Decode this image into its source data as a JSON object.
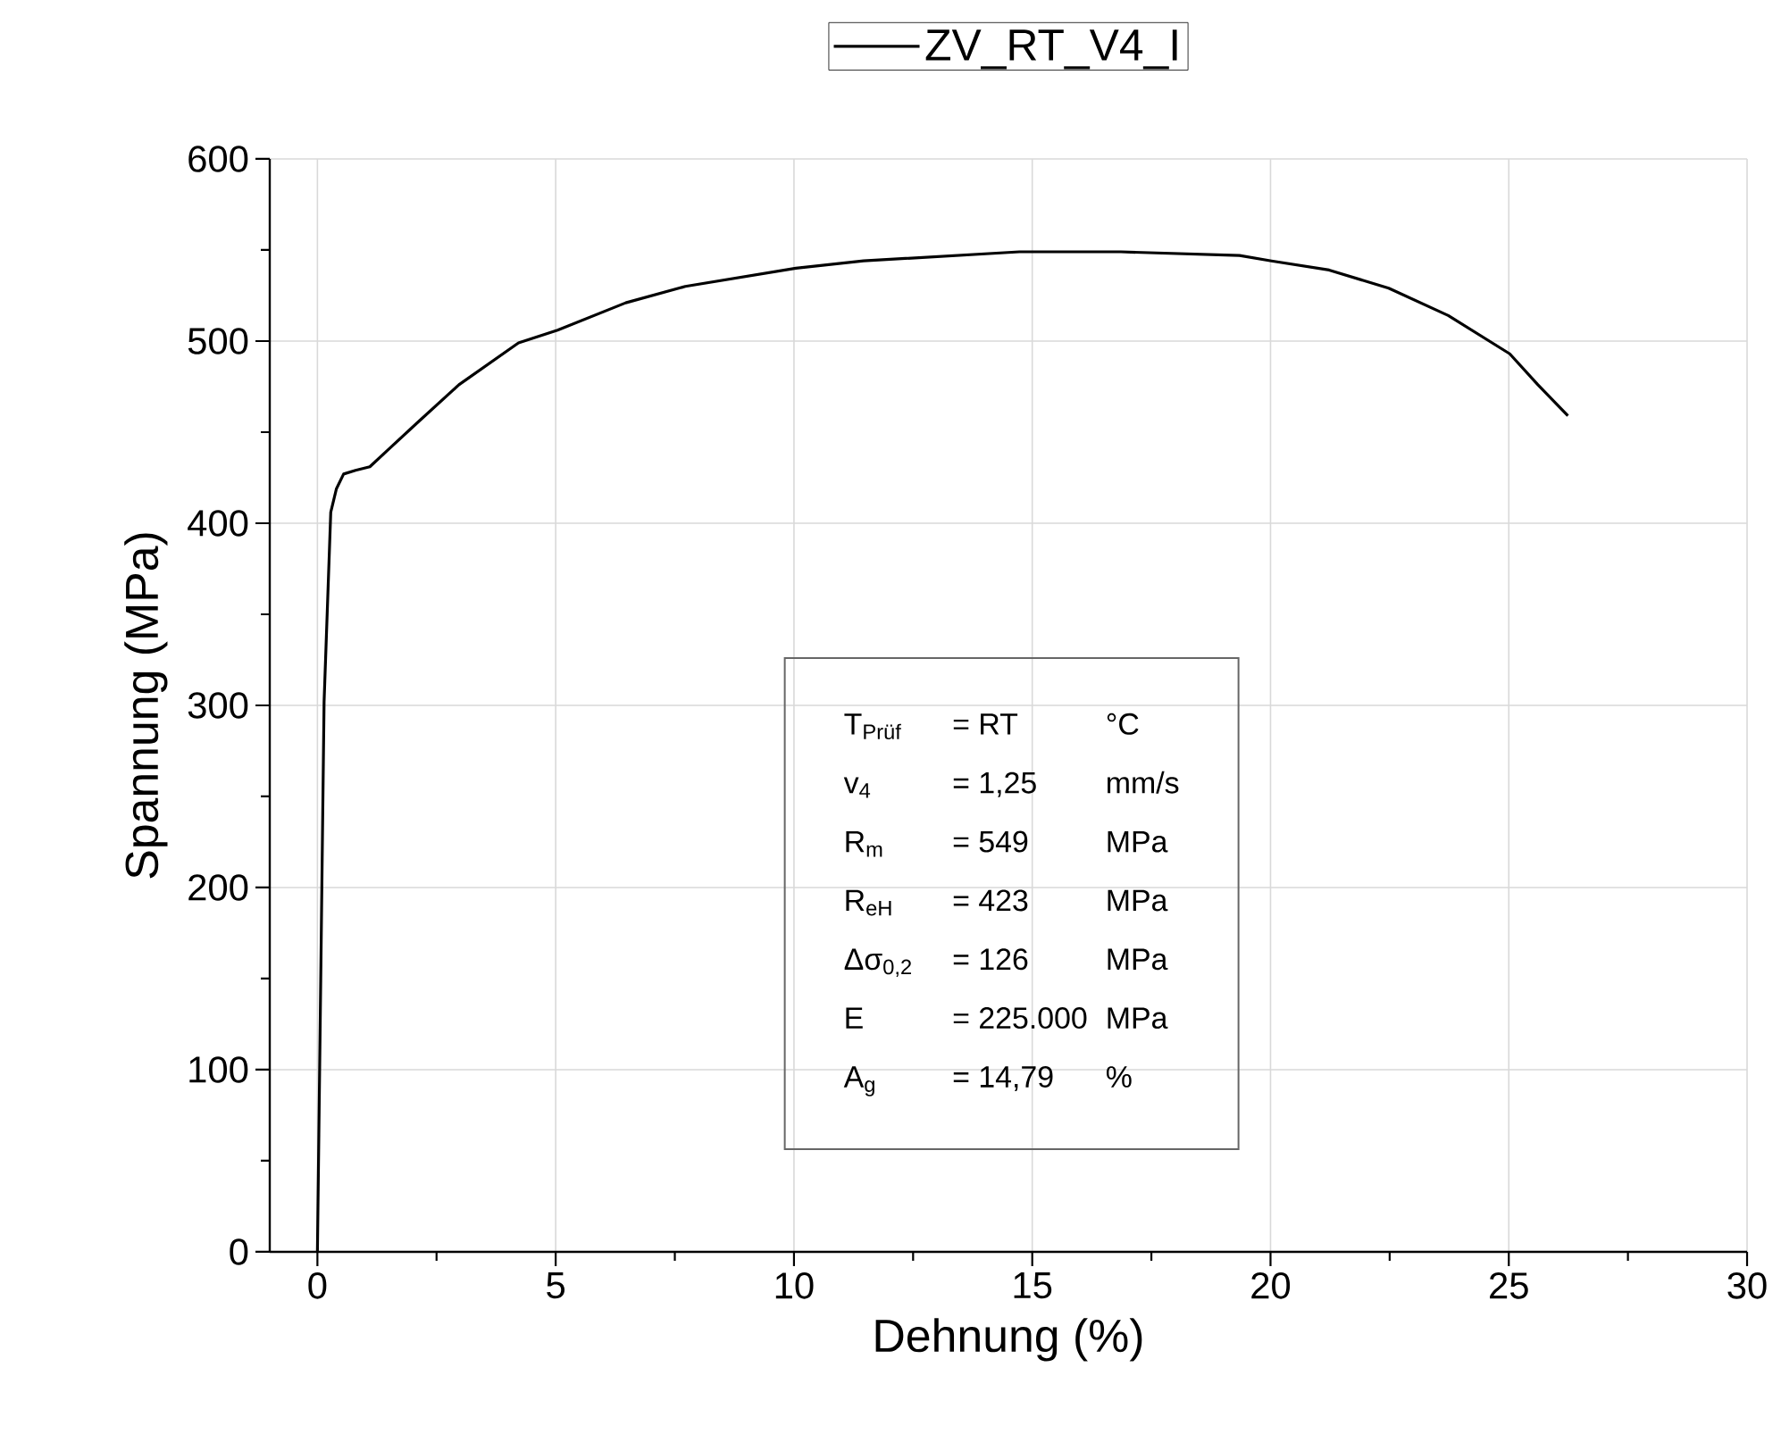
{
  "chart_data": {
    "type": "line",
    "xlabel": "Dehnung (%)",
    "ylabel": "Spannung (MPa)",
    "xlim": [
      -1,
      30
    ],
    "ylim": [
      0,
      600
    ],
    "xticks": [
      0,
      5,
      10,
      15,
      20,
      25,
      30
    ],
    "yticks": [
      0,
      100,
      200,
      300,
      400,
      500,
      600
    ],
    "grid": true,
    "legend": "top",
    "series": [
      {
        "name": "ZV_RT_V4_I",
        "color": "#000000",
        "x": [
          0,
          0.07,
          0.14,
          0.28,
          0.4,
          0.55,
          0.8,
          1.1,
          1.47,
          2.09,
          2.97,
          4.22,
          5.04,
          6.47,
          7.72,
          10.04,
          11.46,
          14.73,
          16.86,
          19.35,
          20.02,
          21.23,
          22.48,
          23.73,
          25.02,
          25.61,
          26.24
        ],
        "values": [
          0,
          150,
          302,
          406,
          419,
          427,
          429,
          431,
          440,
          455,
          476,
          499,
          506,
          521,
          530,
          540,
          544,
          549,
          549,
          547,
          544,
          539,
          529,
          514,
          493,
          476,
          459
        ]
      }
    ],
    "annotations": [
      "T$_{Prüf}$",
      "= RT",
      "°C",
      "v$_{4}$",
      "= 1,25",
      "mm/s",
      "R$_{m}$",
      "= 549",
      "MPa",
      "R$_{eH}$",
      "= 423",
      "MPa",
      "Δσ$_{0,2}$",
      "= 126",
      "MPa",
      "E",
      "= 225.000",
      "MPa",
      "A$_{g}$",
      "= 14,79",
      "%"
    ]
  }
}
